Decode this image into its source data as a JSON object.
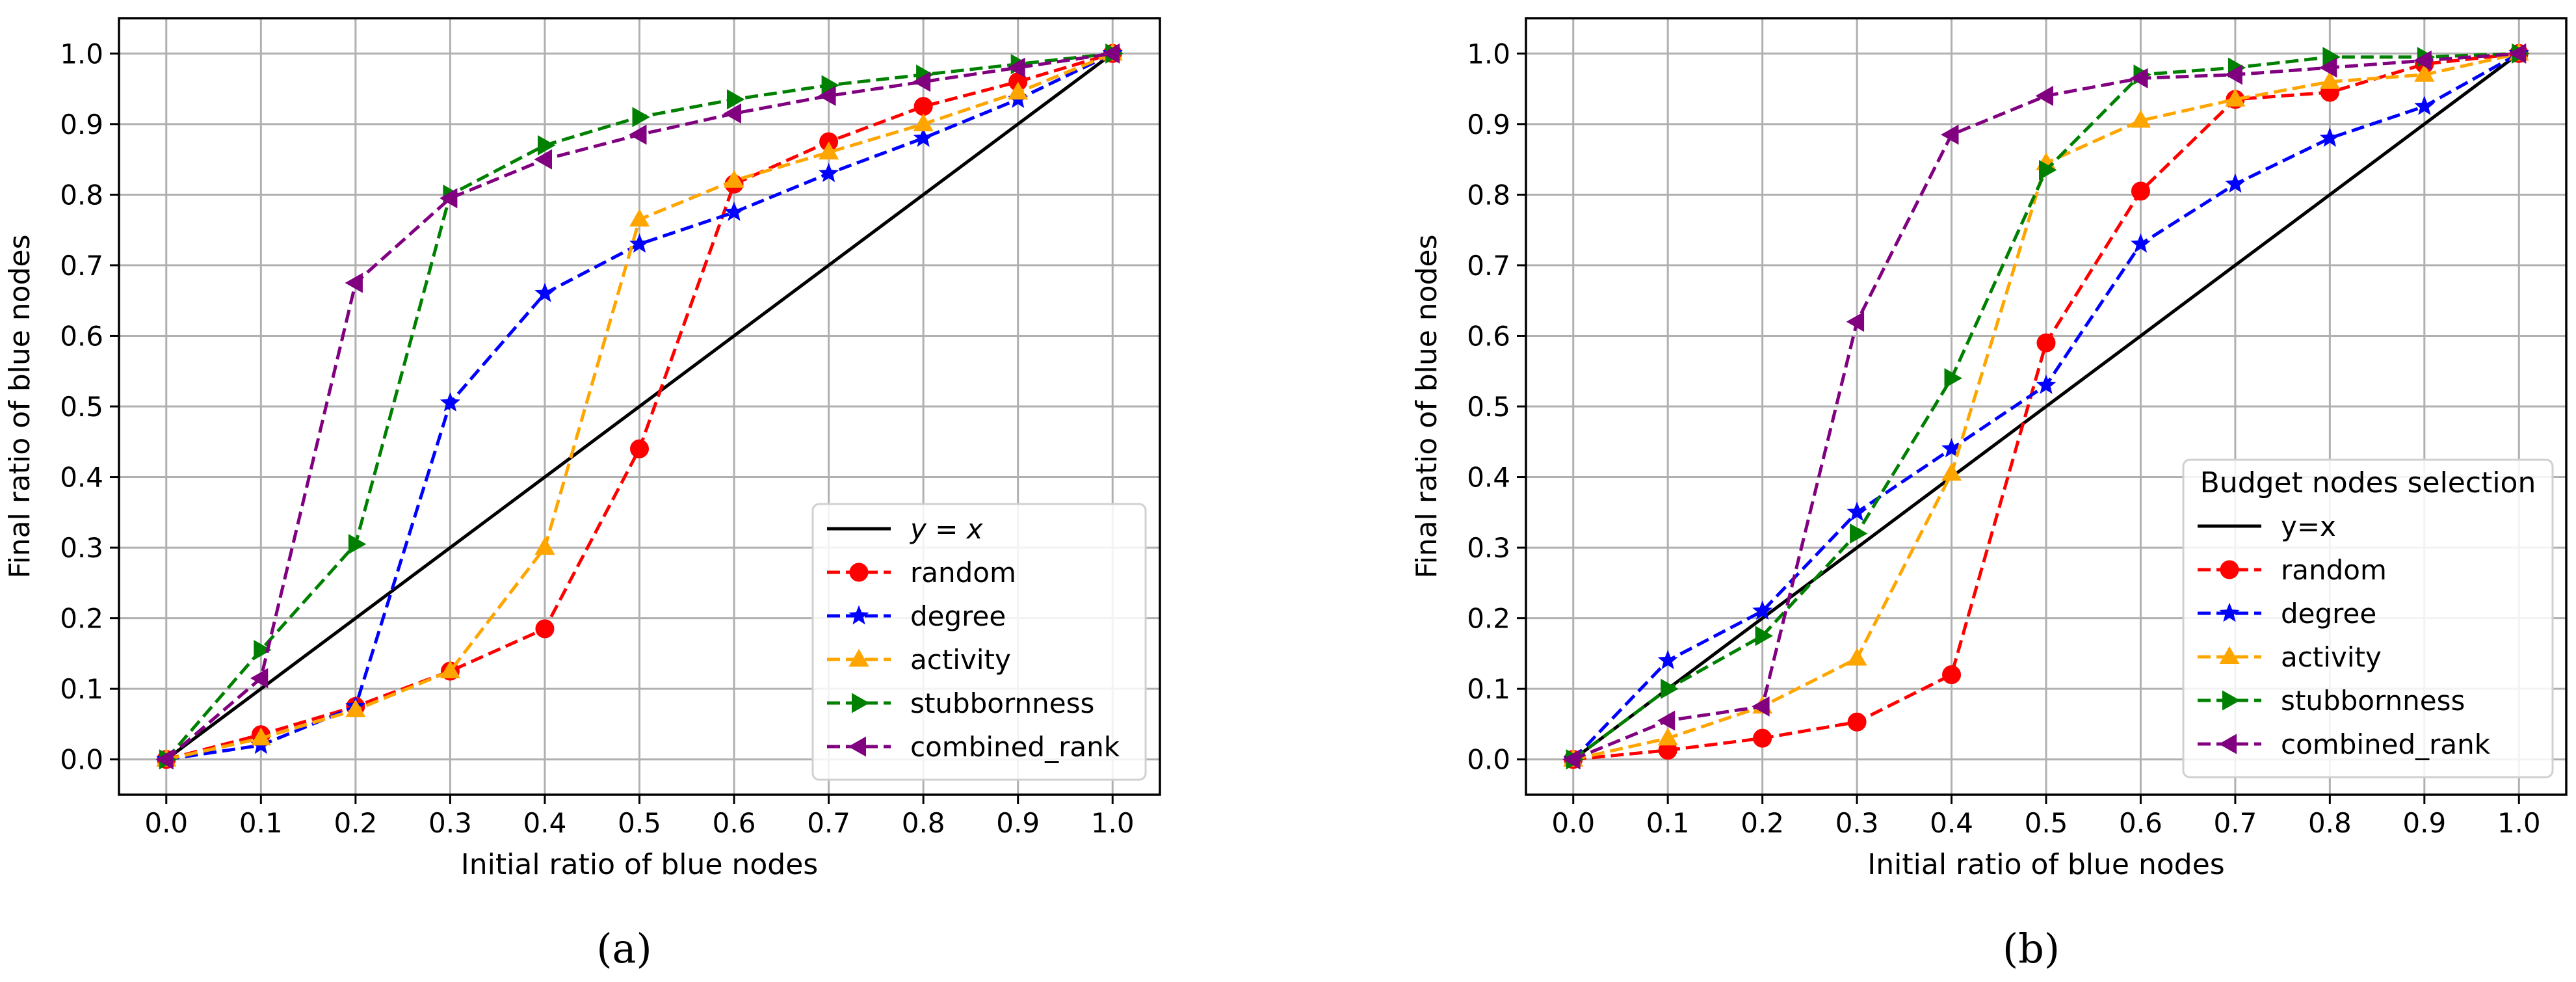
{
  "chart_data": [
    {
      "type": "line",
      "panel_label": "(a)",
      "title": "",
      "xlabel": "Initial ratio of blue nodes",
      "ylabel": "Final ratio of blue nodes",
      "xlim": [
        -0.05,
        1.05
      ],
      "ylim": [
        -0.05,
        1.05
      ],
      "grid": true,
      "xticks": [
        0.0,
        0.1,
        0.2,
        0.3,
        0.4,
        0.5,
        0.6,
        0.7,
        0.8,
        0.9,
        1.0
      ],
      "xtick_labels": [
        "0.0",
        "0.1",
        "0.2",
        "0.3",
        "0.4",
        "0.5",
        "0.6",
        "0.7",
        "0.8",
        "0.9",
        "1.0"
      ],
      "yticks": [
        0.0,
        0.1,
        0.2,
        0.3,
        0.4,
        0.5,
        0.6,
        0.7,
        0.8,
        0.9,
        1.0
      ],
      "ytick_labels": [
        "0.0",
        "0.1",
        "0.2",
        "0.3",
        "0.4",
        "0.5",
        "0.6",
        "0.7",
        "0.8",
        "0.9",
        "1.0"
      ],
      "legend": {
        "title": "",
        "placement": "lower-right"
      },
      "x": [
        0.0,
        0.1,
        0.2,
        0.3,
        0.4,
        0.5,
        0.6,
        0.7,
        0.8,
        0.9,
        1.0
      ],
      "series": [
        {
          "name": "y = x",
          "style": "solid",
          "color": "#000000",
          "marker": "none",
          "values": [
            0.0,
            0.1,
            0.2,
            0.3,
            0.4,
            0.5,
            0.6,
            0.7,
            0.8,
            0.9,
            1.0
          ]
        },
        {
          "name": "random",
          "style": "dashed",
          "color": "#ff0000",
          "marker": "circle",
          "values": [
            0.0,
            0.035,
            0.075,
            0.125,
            0.185,
            0.44,
            0.815,
            0.875,
            0.925,
            0.96,
            1.0
          ]
        },
        {
          "name": "degree",
          "style": "dashed",
          "color": "#0000ff",
          "marker": "star",
          "values": [
            0.0,
            0.02,
            0.075,
            0.505,
            0.66,
            0.73,
            0.775,
            0.83,
            0.88,
            0.935,
            1.0
          ]
        },
        {
          "name": "activity",
          "style": "dashed",
          "color": "#ffa500",
          "marker": "triangle-up",
          "values": [
            0.0,
            0.03,
            0.07,
            0.125,
            0.3,
            0.765,
            0.82,
            0.86,
            0.9,
            0.945,
            1.0
          ]
        },
        {
          "name": "stubbornness",
          "style": "dashed",
          "color": "#008000",
          "marker": "triangle-right",
          "values": [
            0.0,
            0.155,
            0.305,
            0.8,
            0.87,
            0.91,
            0.935,
            0.955,
            0.97,
            0.985,
            1.0
          ]
        },
        {
          "name": "combined_rank",
          "style": "dashed",
          "color": "#800080",
          "marker": "triangle-left",
          "values": [
            0.0,
            0.115,
            0.675,
            0.795,
            0.85,
            0.885,
            0.915,
            0.94,
            0.96,
            0.98,
            1.0
          ]
        }
      ]
    },
    {
      "type": "line",
      "panel_label": "(b)",
      "title": "",
      "xlabel": "Initial ratio of blue nodes",
      "ylabel": "Final ratio of blue nodes",
      "xlim": [
        -0.05,
        1.05
      ],
      "ylim": [
        -0.05,
        1.05
      ],
      "grid": true,
      "xticks": [
        0.0,
        0.1,
        0.2,
        0.3,
        0.4,
        0.5,
        0.6,
        0.7,
        0.8,
        0.9,
        1.0
      ],
      "xtick_labels": [
        "0.0",
        "0.1",
        "0.2",
        "0.3",
        "0.4",
        "0.5",
        "0.6",
        "0.7",
        "0.8",
        "0.9",
        "1.0"
      ],
      "yticks": [
        0.0,
        0.1,
        0.2,
        0.3,
        0.4,
        0.5,
        0.6,
        0.7,
        0.8,
        0.9,
        1.0
      ],
      "ytick_labels": [
        "0.0",
        "0.1",
        "0.2",
        "0.3",
        "0.4",
        "0.5",
        "0.6",
        "0.7",
        "0.8",
        "0.9",
        "1.0"
      ],
      "legend": {
        "title": "Budget nodes selection",
        "placement": "lower-right"
      },
      "x": [
        0.0,
        0.1,
        0.2,
        0.3,
        0.4,
        0.5,
        0.6,
        0.7,
        0.8,
        0.9,
        1.0
      ],
      "series": [
        {
          "name": "y=x",
          "style": "solid",
          "color": "#000000",
          "marker": "none",
          "values": [
            0.0,
            0.1,
            0.2,
            0.3,
            0.4,
            0.5,
            0.6,
            0.7,
            0.8,
            0.9,
            1.0
          ]
        },
        {
          "name": "random",
          "style": "dashed",
          "color": "#ff0000",
          "marker": "circle",
          "values": [
            0.0,
            0.013,
            0.03,
            0.053,
            0.12,
            0.59,
            0.805,
            0.935,
            0.945,
            0.985,
            1.0
          ]
        },
        {
          "name": "degree",
          "style": "dashed",
          "color": "#0000ff",
          "marker": "star",
          "values": [
            0.0,
            0.14,
            0.21,
            0.35,
            0.44,
            0.53,
            0.73,
            0.815,
            0.88,
            0.925,
            1.0
          ]
        },
        {
          "name": "activity",
          "style": "dashed",
          "color": "#ffa500",
          "marker": "triangle-up",
          "values": [
            0.0,
            0.03,
            0.075,
            0.143,
            0.405,
            0.845,
            0.905,
            0.935,
            0.96,
            0.97,
            1.0
          ]
        },
        {
          "name": "stubbornness",
          "style": "dashed",
          "color": "#008000",
          "marker": "triangle-right",
          "values": [
            0.0,
            0.1,
            0.175,
            0.32,
            0.54,
            0.835,
            0.97,
            0.98,
            0.995,
            0.995,
            1.0
          ]
        },
        {
          "name": "combined_rank",
          "style": "dashed",
          "color": "#800080",
          "marker": "triangle-left",
          "values": [
            0.0,
            0.055,
            0.075,
            0.62,
            0.885,
            0.94,
            0.965,
            0.97,
            0.98,
            0.99,
            1.0
          ]
        }
      ]
    }
  ]
}
